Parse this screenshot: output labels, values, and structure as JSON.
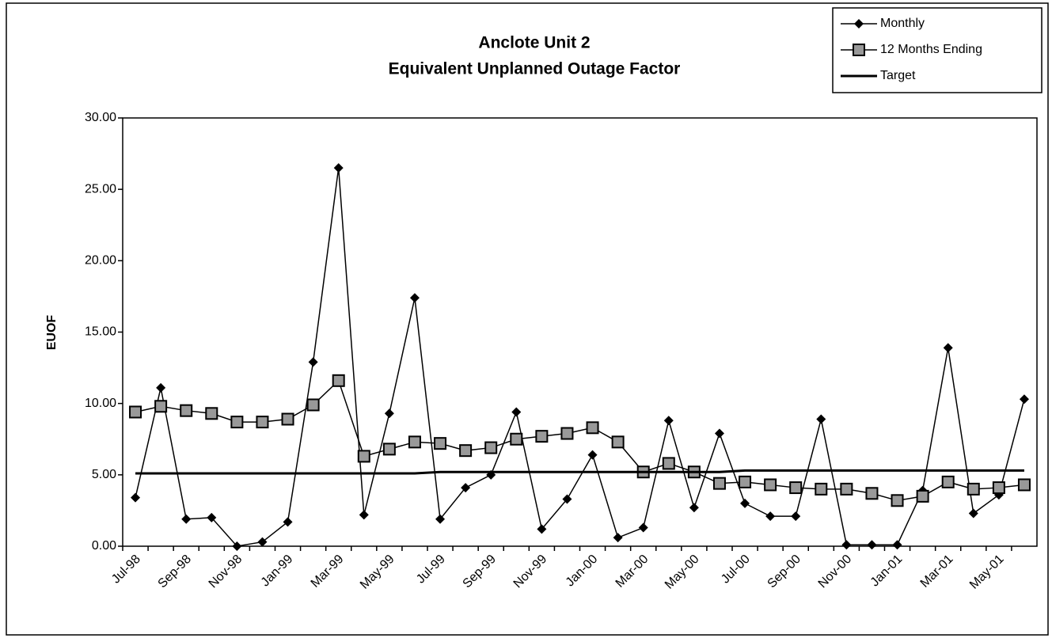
{
  "chart_data": {
    "type": "line",
    "title": "Anclote Unit 2",
    "subtitle": "Equivalent Unplanned Outage Factor",
    "y_label": "EUOF",
    "categories": [
      "Jul-98",
      null,
      "Sep-98",
      null,
      "Nov-98",
      null,
      "Jan-99",
      null,
      "Mar-99",
      null,
      "May-99",
      null,
      "Jul-99",
      null,
      "Sep-99",
      null,
      "Nov-99",
      null,
      "Jan-00",
      null,
      "Mar-00",
      null,
      "May-00",
      null,
      "Jul-00",
      null,
      "Sep-00",
      null,
      "Nov-00",
      null,
      "Jan-01",
      null,
      "Mar-01",
      null,
      "May-01",
      null
    ],
    "series": [
      {
        "name": "Monthly",
        "color": "#000000",
        "marker": "diamond",
        "values": [
          3.4,
          11.1,
          1.9,
          2.0,
          0.0,
          0.3,
          1.7,
          12.9,
          26.5,
          2.2,
          9.3,
          17.4,
          1.9,
          4.1,
          5.0,
          9.4,
          1.2,
          3.3,
          6.4,
          0.6,
          1.3,
          8.8,
          2.7,
          7.9,
          3.0,
          2.1,
          2.1,
          8.9,
          0.1,
          0.1,
          0.1,
          3.9,
          13.9,
          2.3,
          3.6,
          10.3
        ]
      },
      {
        "name": "12 Months Ending",
        "color": "#000000",
        "marker": "square",
        "values": [
          9.4,
          9.8,
          9.5,
          9.3,
          8.7,
          8.7,
          8.9,
          9.9,
          11.6,
          6.3,
          6.8,
          7.3,
          7.2,
          6.7,
          6.9,
          7.5,
          7.7,
          7.9,
          8.3,
          7.3,
          5.2,
          5.8,
          5.2,
          4.4,
          4.5,
          4.3,
          4.1,
          4.0,
          4.0,
          3.7,
          3.2,
          3.5,
          4.5,
          4.0,
          4.1,
          4.3
        ]
      },
      {
        "name": "Target",
        "color": "#000000",
        "marker": "none",
        "values": [
          5.1,
          5.1,
          5.1,
          5.1,
          5.1,
          5.1,
          5.1,
          5.1,
          5.1,
          5.1,
          5.1,
          5.1,
          5.2,
          5.2,
          5.2,
          5.2,
          5.2,
          5.2,
          5.2,
          5.2,
          5.2,
          5.2,
          5.2,
          5.2,
          5.3,
          5.3,
          5.3,
          5.3,
          5.3,
          5.3,
          5.3,
          5.3,
          5.3,
          5.3,
          5.3,
          5.3
        ]
      }
    ],
    "ylim": [
      0,
      30
    ],
    "yticks": [
      {
        "value": 0,
        "label": "0.00"
      },
      {
        "value": 5,
        "label": "5.00"
      },
      {
        "value": 10,
        "label": "10.00"
      },
      {
        "value": 15,
        "label": "15.00"
      },
      {
        "value": 20,
        "label": "20.00"
      },
      {
        "value": 25,
        "label": "25.00"
      },
      {
        "value": 30,
        "label": "30.00"
      }
    ],
    "grid": false,
    "legend": "top-right"
  }
}
